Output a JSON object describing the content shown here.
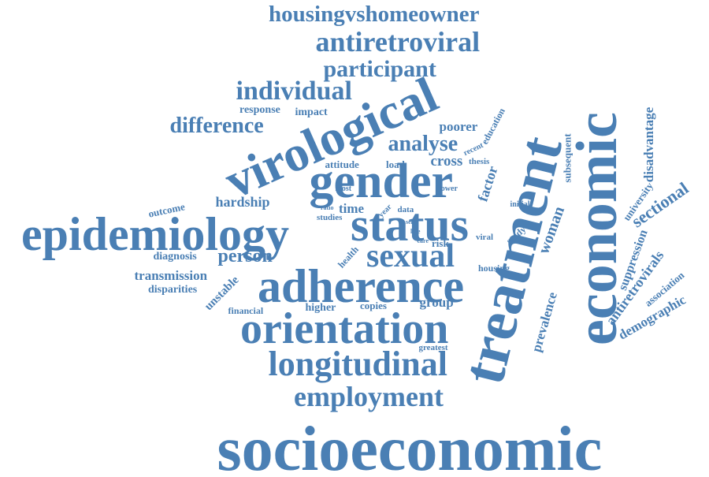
{
  "color": "#4a7fb4",
  "words": [
    {
      "id": "socioeconomic",
      "text": "socioeconomic"
    },
    {
      "id": "treatment",
      "text": "treatment"
    },
    {
      "id": "economic",
      "text": "economic"
    },
    {
      "id": "epidemiology",
      "text": "epidemiology"
    },
    {
      "id": "status",
      "text": "status"
    },
    {
      "id": "virological",
      "text": "virological"
    },
    {
      "id": "gender",
      "text": "gender"
    },
    {
      "id": "adherence",
      "text": "adherence"
    },
    {
      "id": "orientation",
      "text": "orientation"
    },
    {
      "id": "longitudinal",
      "text": "longitudinal"
    },
    {
      "id": "employment",
      "text": "employment"
    },
    {
      "id": "housingvshomeowner",
      "text": "housingvshomeowner"
    },
    {
      "id": "antiretroviral",
      "text": "antiretroviral"
    },
    {
      "id": "participant",
      "text": "participant"
    },
    {
      "id": "individual",
      "text": "individual"
    },
    {
      "id": "difference",
      "text": "difference"
    },
    {
      "id": "sexual",
      "text": "sexual"
    },
    {
      "id": "analyse",
      "text": "analyse"
    },
    {
      "id": "person",
      "text": "person"
    },
    {
      "id": "response",
      "text": "response"
    },
    {
      "id": "impact",
      "text": "impact"
    },
    {
      "id": "poorer",
      "text": "poorer"
    },
    {
      "id": "education",
      "text": "education"
    },
    {
      "id": "recent",
      "text": "recent"
    },
    {
      "id": "thesis",
      "text": "thesis"
    },
    {
      "id": "cross",
      "text": "cross"
    },
    {
      "id": "attitude",
      "text": "attitude"
    },
    {
      "id": "load",
      "text": "load"
    },
    {
      "id": "factor",
      "text": "factor"
    },
    {
      "id": "subsequent",
      "text": "subsequent"
    },
    {
      "id": "disadvantage",
      "text": "disadvantage"
    },
    {
      "id": "hardship",
      "text": "hardship"
    },
    {
      "id": "most",
      "text": "most"
    },
    {
      "id": "lower",
      "text": "lower"
    },
    {
      "id": "outcome",
      "text": "outcome"
    },
    {
      "id": "time",
      "text": "time"
    },
    {
      "id": "studies",
      "text": "studies"
    },
    {
      "id": "ratio",
      "text": "ratio"
    },
    {
      "id": "year",
      "text": "year"
    },
    {
      "id": "data",
      "text": "data"
    },
    {
      "id": "initial",
      "text": "initial"
    },
    {
      "id": "university",
      "text": "university"
    },
    {
      "id": "sectional",
      "text": "sectional"
    },
    {
      "id": "woman",
      "text": "woman"
    },
    {
      "id": "self",
      "text": "self"
    },
    {
      "id": "late",
      "text": "late"
    },
    {
      "id": "care",
      "text": "care"
    },
    {
      "id": "risk",
      "text": "risk"
    },
    {
      "id": "viral",
      "text": "viral"
    },
    {
      "id": "study",
      "text": "study"
    },
    {
      "id": "diagnosis",
      "text": "diagnosis"
    },
    {
      "id": "health",
      "text": "health"
    },
    {
      "id": "housing",
      "text": "housing"
    },
    {
      "id": "transmission",
      "text": "transmission"
    },
    {
      "id": "disparities",
      "text": "disparities"
    },
    {
      "id": "unstable",
      "text": "unstable"
    },
    {
      "id": "prevalence",
      "text": "prevalence"
    },
    {
      "id": "suppression",
      "text": "suppression"
    },
    {
      "id": "antiretrovirals",
      "text": "antiretrovirals"
    },
    {
      "id": "association",
      "text": "association"
    },
    {
      "id": "demographic",
      "text": "demographic"
    },
    {
      "id": "financial",
      "text": "financial"
    },
    {
      "id": "higher",
      "text": "higher"
    },
    {
      "id": "copies",
      "text": "copies"
    },
    {
      "id": "group",
      "text": "group"
    },
    {
      "id": "greatest",
      "text": "greatest"
    }
  ]
}
